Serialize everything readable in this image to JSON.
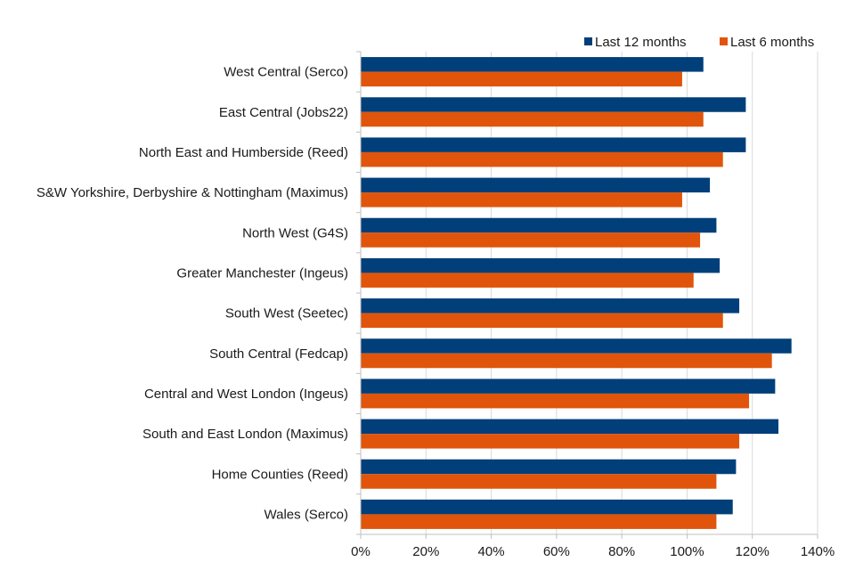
{
  "chart_data": {
    "type": "bar",
    "orientation": "horizontal",
    "title": "",
    "xlabel": "",
    "ylabel": "",
    "xlim": [
      0,
      140
    ],
    "x_ticks": [
      0,
      20,
      40,
      60,
      80,
      100,
      120,
      140
    ],
    "tick_suffix": "%",
    "grid": true,
    "legend_position": "top-right",
    "categories": [
      "West Central (Serco)",
      "East Central  (Jobs22)",
      "North East and Humberside (Reed)",
      "S&W Yorkshire, Derbyshire & Nottingham (Maximus)",
      "North West (G4S)",
      "Greater Manchester (Ingeus)",
      "South West (Seetec)",
      "South Central (Fedcap)",
      "Central and West London (Ingeus)",
      "South and East London (Maximus)",
      "Home Counties (Reed)",
      "Wales (Serco)"
    ],
    "series": [
      {
        "name": "Last 12 months",
        "color": "#003f7a",
        "values": [
          105,
          118,
          118,
          107,
          109,
          110,
          116,
          132,
          127,
          128,
          115,
          114
        ]
      },
      {
        "name": "Last 6 months",
        "color": "#e0550b",
        "values": [
          98.5,
          105,
          111,
          98.5,
          104,
          102,
          111,
          126,
          119,
          116,
          109,
          109
        ]
      }
    ]
  }
}
